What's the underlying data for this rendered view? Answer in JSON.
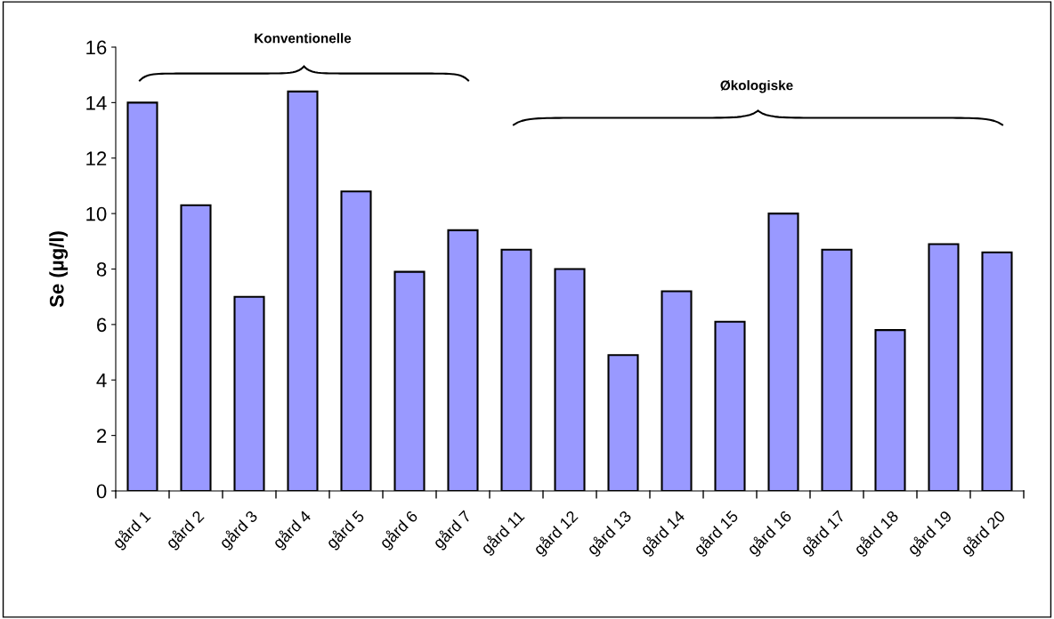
{
  "chart_data": {
    "type": "bar",
    "ylabel": "Se (µg/l)",
    "categories": [
      "gård 1",
      "gård 2",
      "gård 3",
      "gård 4",
      "gård 5",
      "gård 6",
      "gård 7",
      "gård 11",
      "gård 12",
      "gård 13",
      "gård 14",
      "gård 15",
      "gård 16",
      "gård 17",
      "gård 18",
      "gård 19",
      "gård 20"
    ],
    "values": [
      14.0,
      10.3,
      7.0,
      14.4,
      10.8,
      7.9,
      9.4,
      8.7,
      8.0,
      4.9,
      7.2,
      6.1,
      10.0,
      8.7,
      5.8,
      8.9,
      8.6
    ],
    "color": "#9999ff",
    "ylim": [
      0,
      16
    ],
    "yticks": [
      0,
      2,
      4,
      6,
      8,
      10,
      12,
      14,
      16
    ],
    "grid": false,
    "annotations": [
      "Konventionelle",
      "Økologiske"
    ]
  }
}
